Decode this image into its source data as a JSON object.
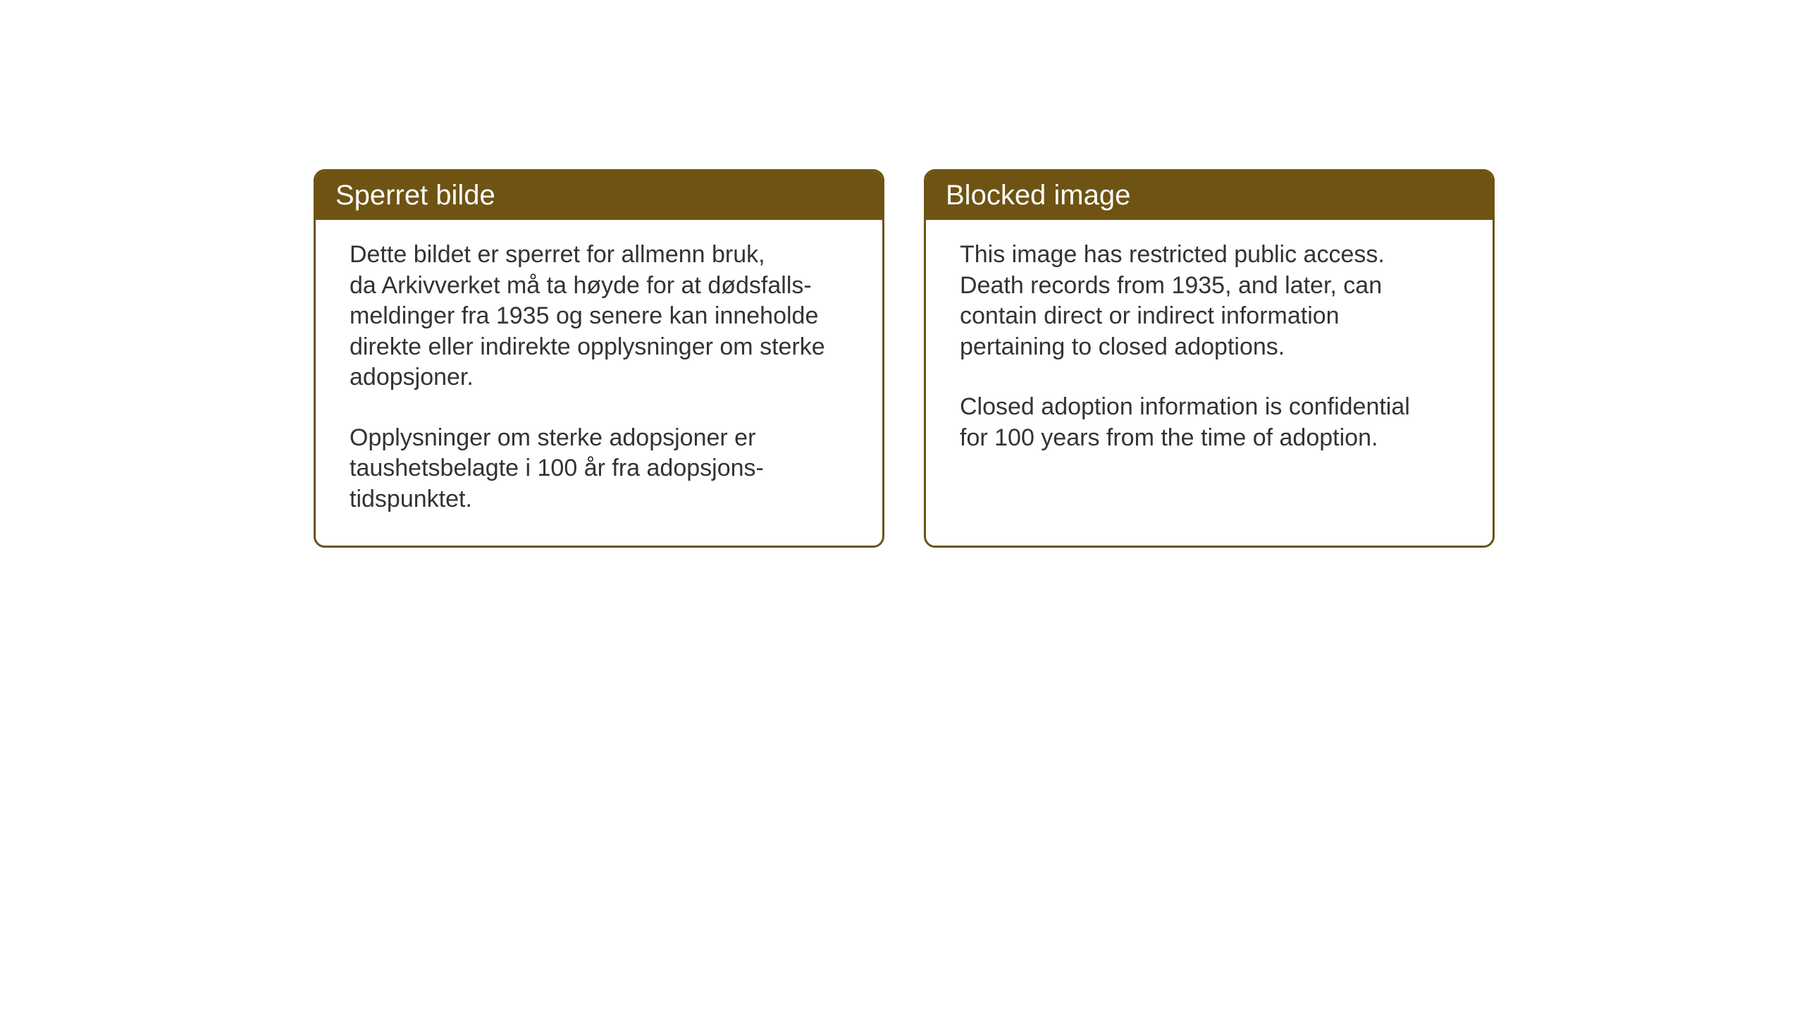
{
  "layout": {
    "background_color": "#ffffff",
    "card_border_color": "#6e5313",
    "card_header_bg": "#6e5313",
    "card_header_text_color": "#ffffff",
    "body_text_color": "#333333",
    "header_fontsize": 40,
    "body_fontsize": 34
  },
  "cards": {
    "norwegian": {
      "title": "Sperret bilde",
      "paragraph1": "Dette bildet er sperret for allmenn bruk,\nda Arkivverket må ta høyde for at dødsfalls-\nmeldinger fra 1935 og senere kan inneholde\ndirekte eller indirekte opplysninger om sterke\nadopsjoner.",
      "paragraph2": "Opplysninger om sterke adopsjoner er\ntaushetsbelagte i 100 år fra adopsjons-\ntidspunktet."
    },
    "english": {
      "title": "Blocked image",
      "paragraph1": "This image has restricted public access.\nDeath records from 1935, and later, can\ncontain direct or indirect information\npertaining to closed adoptions.",
      "paragraph2": "Closed adoption information is confidential\nfor 100 years from the time of adoption."
    }
  }
}
